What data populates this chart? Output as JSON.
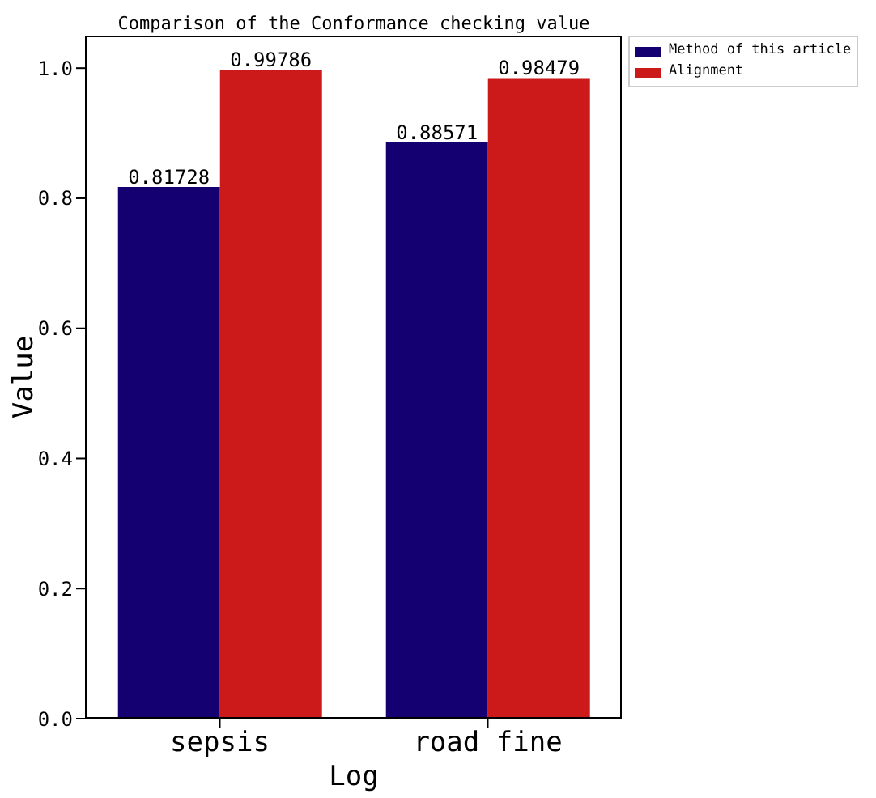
{
  "chart_data": {
    "type": "bar",
    "title": "Comparison of the Conformance checking value",
    "xlabel": "Log",
    "ylabel": "Value",
    "categories": [
      "sepsis",
      "road fine"
    ],
    "series": [
      {
        "name": "Method of this article",
        "color": "#140070",
        "values": [
          0.81728,
          0.88571
        ]
      },
      {
        "name": "Alignment",
        "color": "#cc1a1a",
        "values": [
          0.99786,
          0.98479
        ]
      }
    ],
    "ylim": [
      0,
      1.05
    ],
    "yticks": [
      {
        "value": 0,
        "label": "0.0"
      },
      {
        "value": 0.2,
        "label": "0.2"
      },
      {
        "value": 0.4,
        "label": "0.4"
      },
      {
        "value": 0.6,
        "label": "0.6"
      },
      {
        "value": 0.8,
        "label": "0.8"
      },
      {
        "value": 1,
        "label": "1.0"
      }
    ],
    "data_labels": true,
    "grid": false,
    "legend": "top right"
  }
}
